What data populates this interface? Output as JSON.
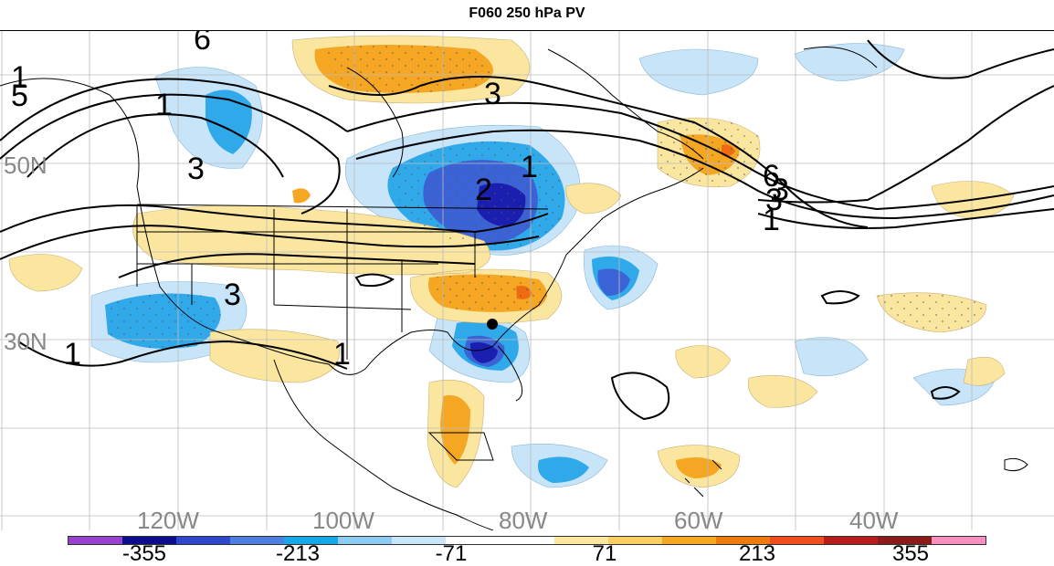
{
  "title": "F060 250 hPa PV",
  "lat_labels": [
    "50N",
    "30N"
  ],
  "lon_labels": [
    "120W",
    "100W",
    "80W",
    "60W",
    "40W"
  ],
  "contour_labels": [
    "6",
    "5",
    "1",
    "3",
    "3",
    "2",
    "1",
    "3",
    "6",
    "3",
    "1",
    "1",
    "1",
    "3",
    "1"
  ],
  "colorbar": {
    "labels": [
      "-355",
      "-213",
      "-71",
      "71",
      "213",
      "355"
    ],
    "colors": [
      "#9b3fcf",
      "#0c0c8c",
      "#2d48c9",
      "#4d7fe0",
      "#17a6e6",
      "#8ccbf2",
      "#c9e6f8",
      "#ffffff",
      "#ffffff",
      "#fbe7a0",
      "#f7cf63",
      "#f5a623",
      "#ef7b10",
      "#f04e1e",
      "#b71d1d",
      "#8b1a1a",
      "#f78fbf"
    ]
  },
  "colors": {
    "negative_strong": "#1b1fb0",
    "negative_mid": "#3b63d6",
    "negative_light": "#2fa9ea",
    "negative_faint": "#b8def7",
    "positive_faint": "#fbe6a0",
    "positive_mid": "#f5a623",
    "positive_strong": "#ee6b12",
    "contour": "#000000",
    "grid": "#bbbbbb",
    "labels": "#888888"
  },
  "marker": "circle"
}
